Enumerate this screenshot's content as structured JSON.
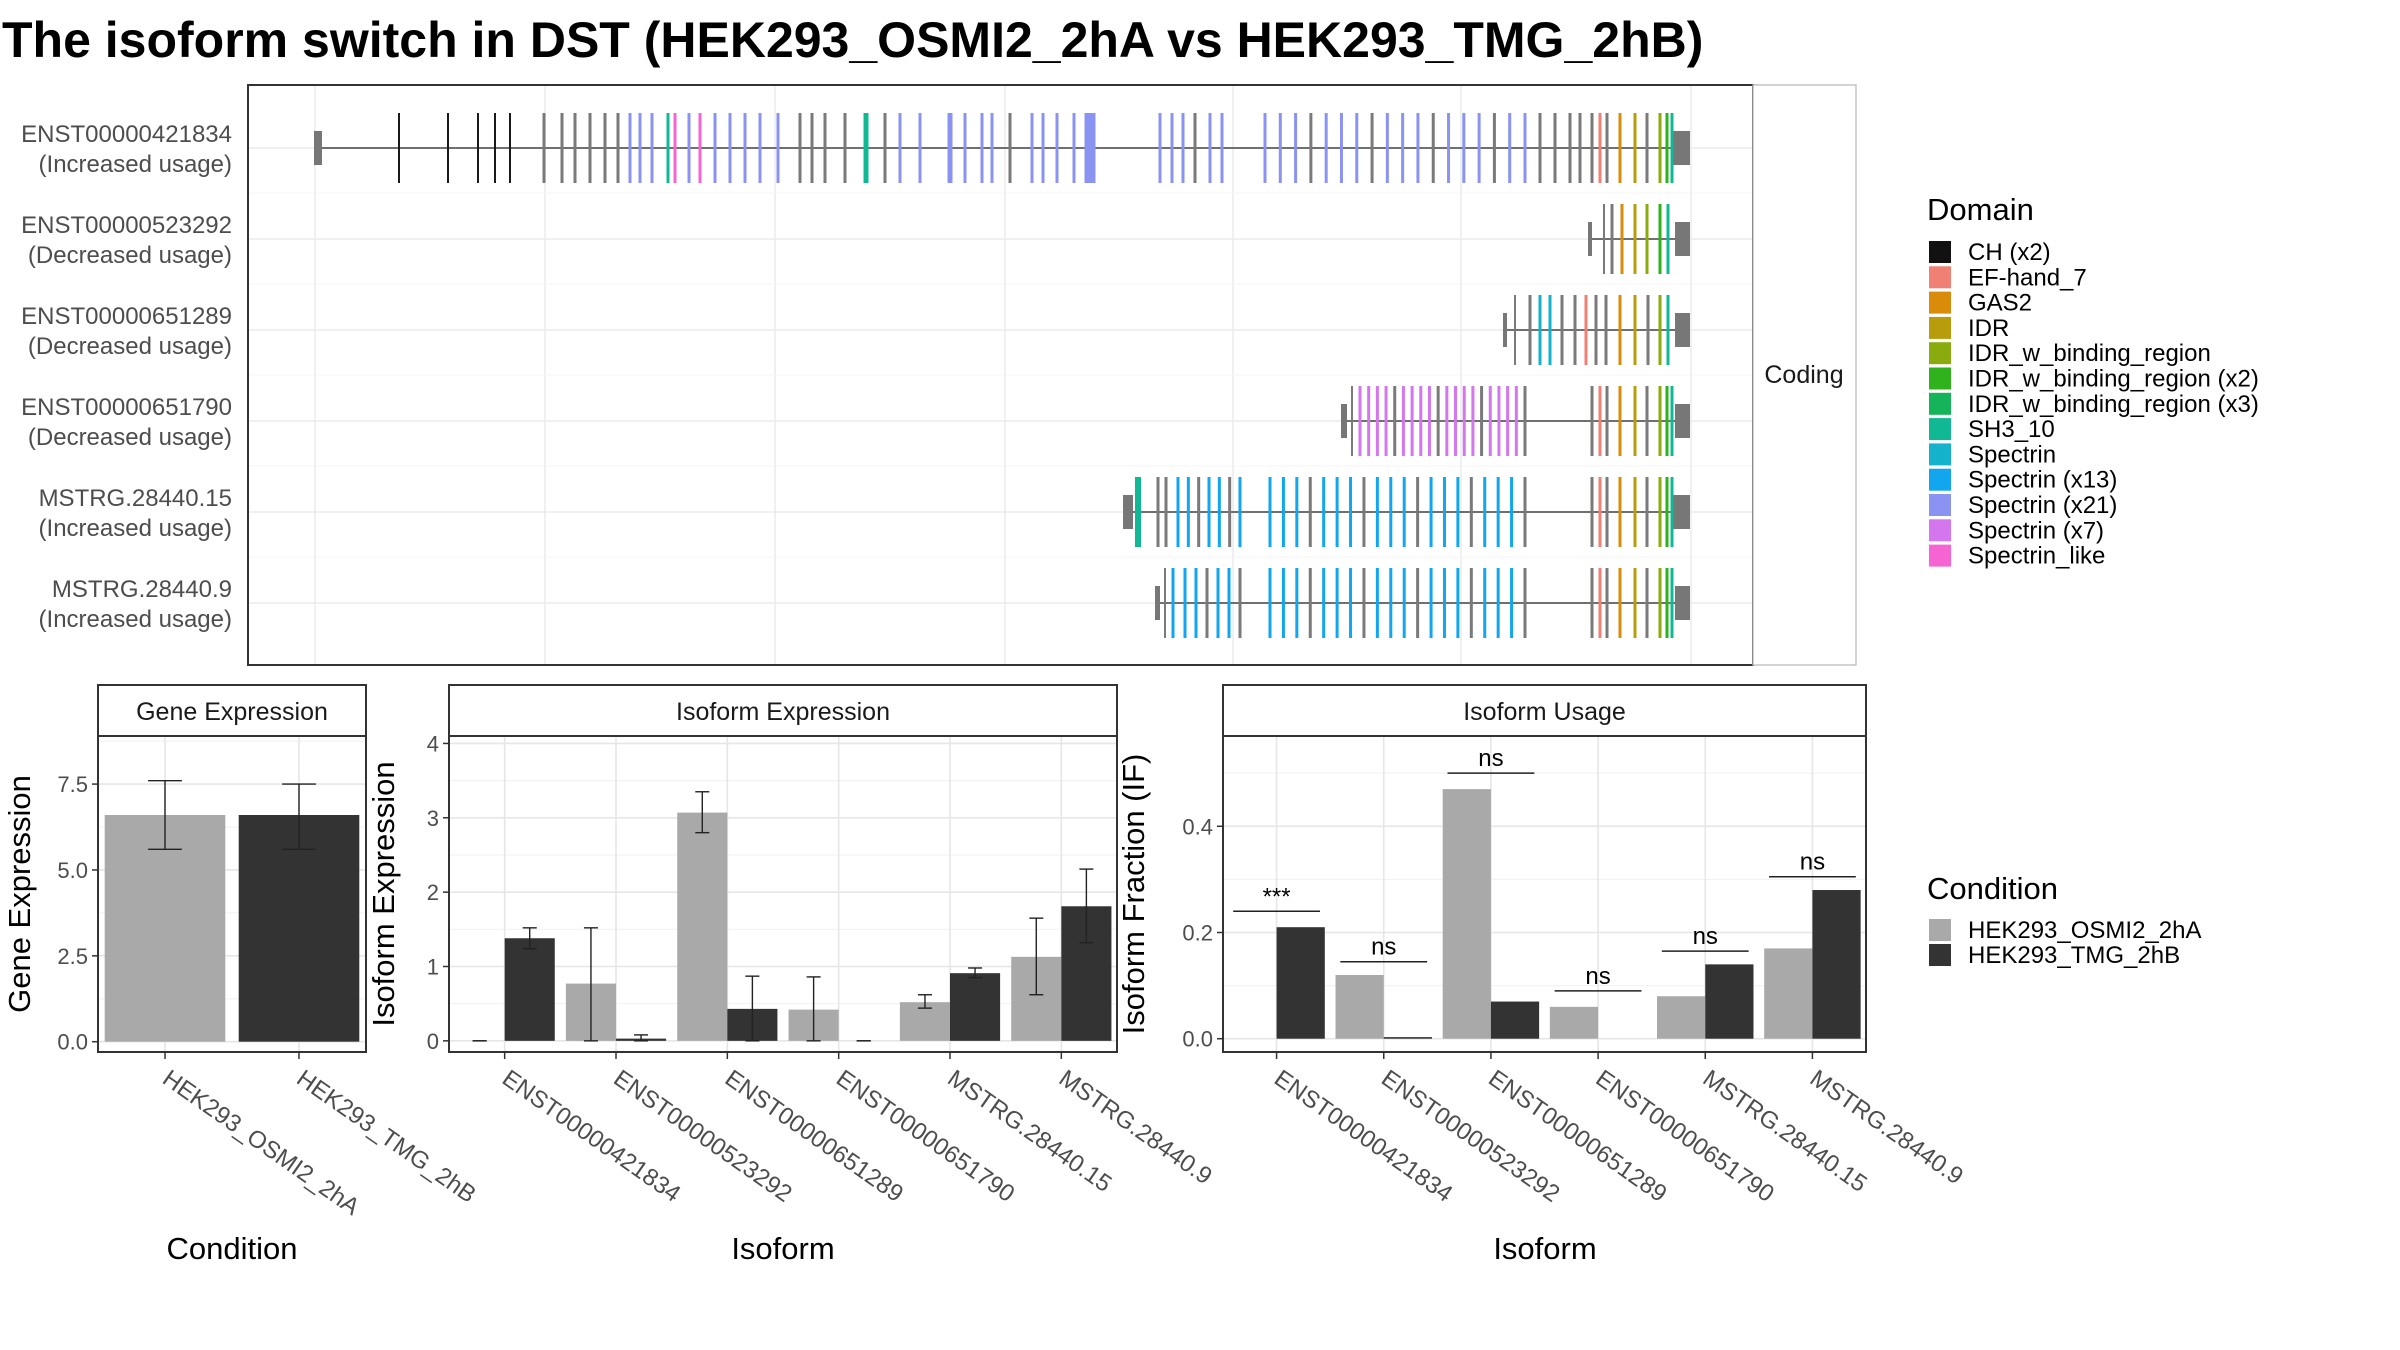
{
  "title": "The isoform switch in DST (HEK293_OSMI2_2hA vs HEK293_TMG_2hB)",
  "structure_panel": {
    "facet_label": "Coding",
    "isoforms": [
      {
        "id": "ENST00000421834",
        "usage": "(Increased usage)"
      },
      {
        "id": "ENST00000523292",
        "usage": "(Decreased usage)"
      },
      {
        "id": "ENST00000651289",
        "usage": "(Decreased usage)"
      },
      {
        "id": "ENST00000651790",
        "usage": "(Decreased usage)"
      },
      {
        "id": "MSTRG.28440.15",
        "usage": "(Increased usage)"
      },
      {
        "id": "MSTRG.28440.9",
        "usage": "(Increased usage)"
      }
    ]
  },
  "domain_legend": {
    "title": "Domain",
    "items": [
      {
        "label": "CH (x2)",
        "color": "#111111"
      },
      {
        "label": "EF-hand_7",
        "color": "#f07f74"
      },
      {
        "label": "GAS2",
        "color": "#d98b0a"
      },
      {
        "label": "IDR",
        "color": "#b79d0b"
      },
      {
        "label": "IDR_w_binding_region",
        "color": "#8aab0e"
      },
      {
        "label": "IDR_w_binding_region (x2)",
        "color": "#2fb21c"
      },
      {
        "label": "IDR_w_binding_region (x3)",
        "color": "#16b45a"
      },
      {
        "label": "SH3_10",
        "color": "#11b894"
      },
      {
        "label": "Spectrin",
        "color": "#15b2cc"
      },
      {
        "label": "Spectrin (x13)",
        "color": "#12a6ef"
      },
      {
        "label": "Spectrin (x21)",
        "color": "#8b93f2"
      },
      {
        "label": "Spectrin (x7)",
        "color": "#d476ee"
      },
      {
        "label": "Spectrin_like",
        "color": "#f564d2"
      }
    ]
  },
  "condition_legend": {
    "title": "Condition",
    "items": [
      {
        "label": "HEK293_OSMI2_2hA",
        "color": "#a9a9a9"
      },
      {
        "label": "HEK293_TMG_2hB",
        "color": "#333333"
      }
    ]
  },
  "chart_data": [
    {
      "type": "bar",
      "title": "Gene Expression",
      "xlabel": "Condition",
      "ylabel": "Gene Expression",
      "ylim": [
        -0.3,
        8.9
      ],
      "yticks": [
        "0.0",
        "2.5",
        "5.0",
        "7.5"
      ],
      "categories": [
        "HEK293_OSMI2_2hA",
        "HEK293_TMG_2hB"
      ],
      "values": [
        6.6,
        6.6
      ],
      "errors": [
        [
          5.6,
          7.6
        ],
        [
          5.6,
          7.5
        ]
      ],
      "colors": [
        "#a9a9a9",
        "#333333"
      ],
      "grid": true
    },
    {
      "type": "bar",
      "title": "Isoform Expression",
      "xlabel": "Isoform",
      "ylabel": "Isoform Expression",
      "ylim": [
        -0.15,
        4.1
      ],
      "yticks": [
        "0",
        "1",
        "2",
        "3",
        "4"
      ],
      "categories": [
        "ENST00000421834",
        "ENST00000523292",
        "ENST00000651289",
        "ENST00000651790",
        "MSTRG.28440.15",
        "MSTRG.28440.9"
      ],
      "series": [
        {
          "name": "HEK293_OSMI2_2hA",
          "color": "#a9a9a9",
          "values": [
            0.0,
            0.77,
            3.07,
            0.42,
            0.52,
            1.13
          ],
          "errors": [
            [
              0.0,
              0.0
            ],
            [
              0.0,
              1.52
            ],
            [
              2.8,
              3.35
            ],
            [
              0.0,
              0.86
            ],
            [
              0.44,
              0.62
            ],
            [
              0.62,
              1.65
            ]
          ]
        },
        {
          "name": "HEK293_TMG_2hB",
          "color": "#333333",
          "values": [
            1.38,
            0.03,
            0.43,
            0.0,
            0.91,
            1.81
          ],
          "errors": [
            [
              1.24,
              1.52
            ],
            [
              0.0,
              0.08
            ],
            [
              0.0,
              0.87
            ],
            [
              0.0,
              0.0
            ],
            [
              0.85,
              0.98
            ],
            [
              1.32,
              2.31
            ]
          ]
        }
      ],
      "grid": true
    },
    {
      "type": "bar",
      "title": "Isoform Usage",
      "xlabel": "Isoform",
      "ylabel": "Isoform Fraction (IF)",
      "ylim": [
        -0.025,
        0.57
      ],
      "yticks": [
        "0.0",
        "0.2",
        "0.4"
      ],
      "categories": [
        "ENST00000421834",
        "ENST00000523292",
        "ENST00000651289",
        "ENST00000651790",
        "MSTRG.28440.15",
        "MSTRG.28440.9"
      ],
      "series": [
        {
          "name": "HEK293_OSMI2_2hA",
          "color": "#a9a9a9",
          "values": [
            0.0,
            0.12,
            0.47,
            0.06,
            0.08,
            0.17
          ]
        },
        {
          "name": "HEK293_TMG_2hB",
          "color": "#333333",
          "values": [
            0.21,
            0.003,
            0.07,
            0.0,
            0.14,
            0.28
          ]
        }
      ],
      "significance": [
        "***",
        "ns",
        "ns",
        "ns",
        "ns",
        "ns"
      ],
      "significance_y": [
        0.24,
        0.145,
        0.5,
        0.09,
        0.165,
        0.305
      ],
      "grid": true
    }
  ]
}
